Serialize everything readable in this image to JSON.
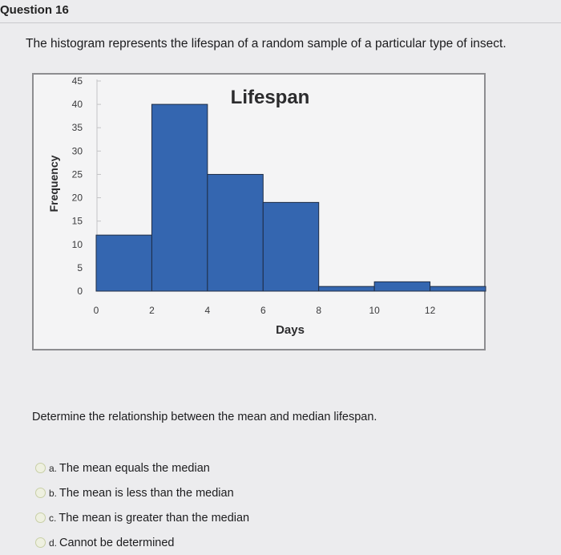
{
  "question": {
    "number_label": "Question 16",
    "stem": "The histogram represents the lifespan of a random sample of a particular type of insect.",
    "prompt": "Determine the relationship between the mean and median lifespan.",
    "options": [
      {
        "letter": "a.",
        "text": "The mean equals the median"
      },
      {
        "letter": "b.",
        "text": "The mean is less than the median"
      },
      {
        "letter": "c.",
        "text": "The mean is greater than the median"
      },
      {
        "letter": "d.",
        "text": "Cannot be determined"
      }
    ]
  },
  "chart_data": {
    "type": "bar",
    "title": "Lifespan",
    "xlabel": "Days",
    "ylabel": "Frequency",
    "bin_edges": [
      0,
      2,
      4,
      6,
      8,
      10,
      12,
      14
    ],
    "values": [
      12,
      40,
      25,
      19,
      1,
      2,
      1
    ],
    "x_ticks": [
      0,
      2,
      4,
      6,
      8,
      10,
      12
    ],
    "y_ticks": [
      0,
      5,
      10,
      15,
      20,
      25,
      30,
      35,
      40,
      45
    ],
    "xlim": [
      0,
      14
    ],
    "ylim": [
      0,
      45
    ],
    "bar_color": "#3466b0",
    "grid": false
  }
}
